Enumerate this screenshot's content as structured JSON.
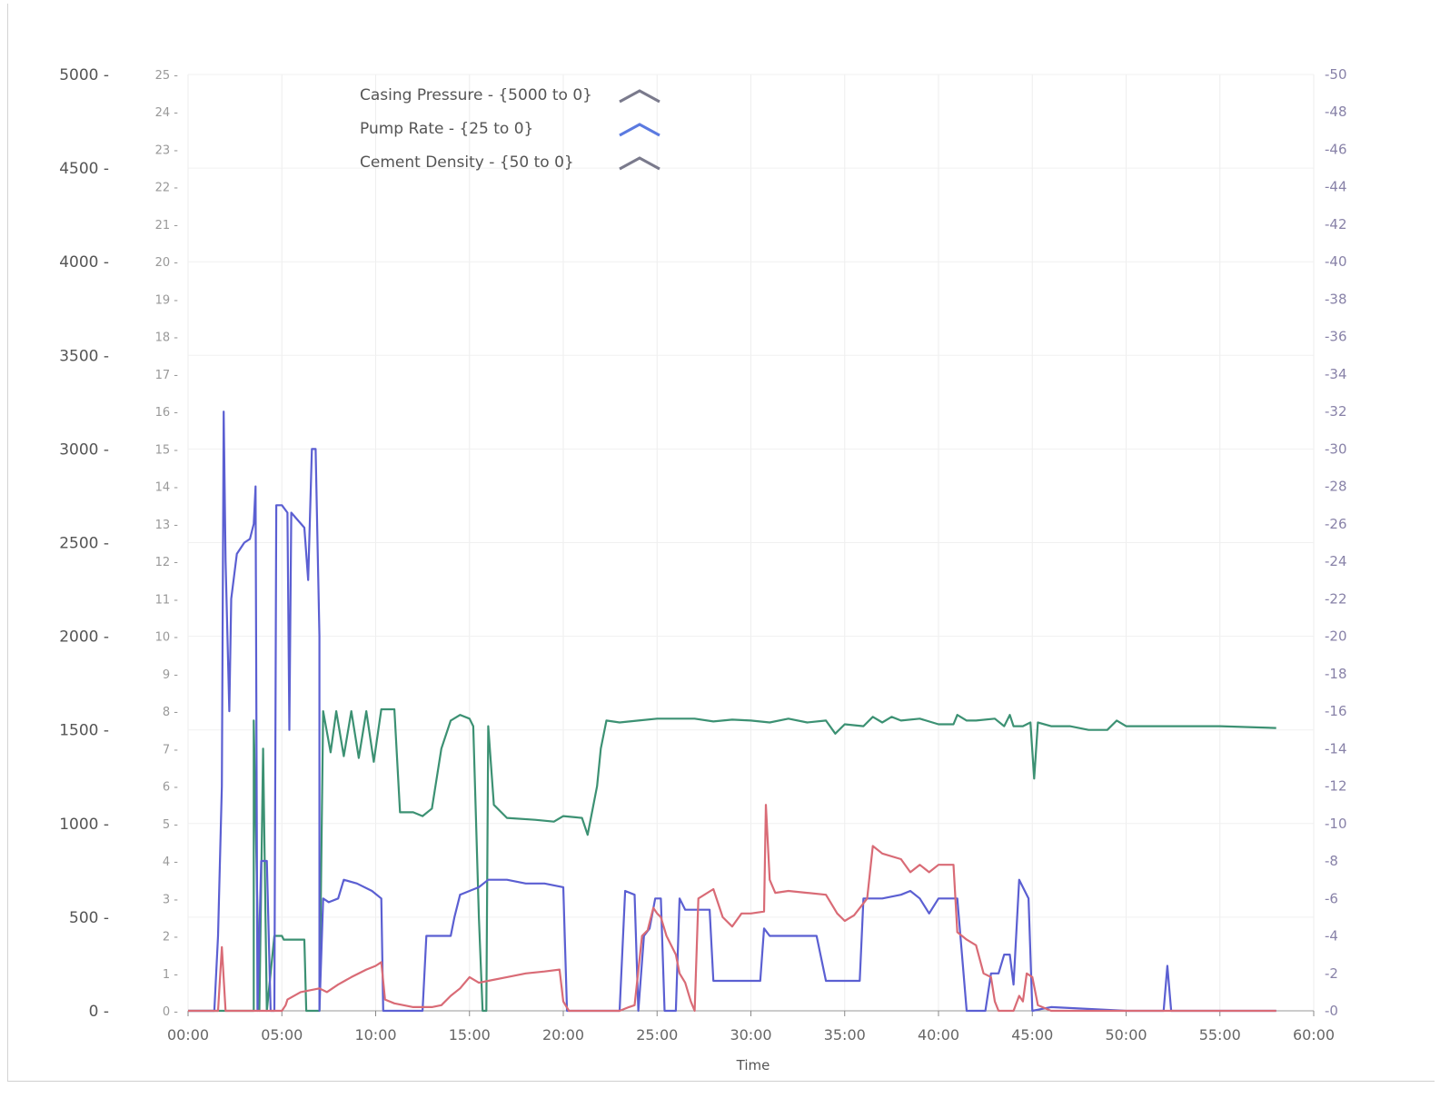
{
  "chart_data": {
    "type": "line",
    "xlabel": "Time",
    "x_ticks": [
      "00:00",
      "05:00",
      "10:00",
      "15:00",
      "20:00",
      "25:00",
      "30:00",
      "35:00",
      "40:00",
      "45:00",
      "50:00",
      "55:00",
      "60:00"
    ],
    "xlim": [
      0,
      60
    ],
    "y_left": {
      "ticks": [
        "0",
        "500",
        "1000",
        "1500",
        "2000",
        "2500",
        "3000",
        "3500",
        "4000",
        "4500",
        "5000"
      ],
      "ylim": [
        0,
        5000
      ]
    },
    "y_mid": {
      "ticks": [
        "0",
        "1",
        "2",
        "3",
        "4",
        "5",
        "6",
        "7",
        "8",
        "9",
        "10",
        "11",
        "12",
        "13",
        "14",
        "15",
        "16",
        "17",
        "18",
        "19",
        "20",
        "21",
        "22",
        "23",
        "24",
        "25"
      ],
      "ylim": [
        0,
        25
      ]
    },
    "y_right": {
      "ticks": [
        "0",
        "2",
        "4",
        "6",
        "8",
        "10",
        "12",
        "14",
        "16",
        "18",
        "20",
        "22",
        "24",
        "26",
        "28",
        "30",
        "32",
        "34",
        "36",
        "38",
        "40",
        "42",
        "44",
        "46",
        "48",
        "50"
      ],
      "ylim": [
        0,
        50
      ]
    },
    "grid": true,
    "legend_position": "top-left",
    "series": [
      {
        "name": "Casing Pressure - {5000 to 0}",
        "color": "#3c9173",
        "axis": "left",
        "points": [
          [
            0,
            0
          ],
          [
            3.5,
            0
          ],
          [
            3.5,
            1550
          ],
          [
            3.8,
            0
          ],
          [
            4.0,
            1400
          ],
          [
            4.2,
            0
          ],
          [
            4.6,
            400
          ],
          [
            5.0,
            400
          ],
          [
            5.1,
            380
          ],
          [
            6.2,
            380
          ],
          [
            6.3,
            0
          ],
          [
            7.0,
            0
          ],
          [
            7.2,
            1600
          ],
          [
            7.6,
            1380
          ],
          [
            7.9,
            1600
          ],
          [
            8.3,
            1360
          ],
          [
            8.7,
            1600
          ],
          [
            9.1,
            1350
          ],
          [
            9.5,
            1600
          ],
          [
            9.9,
            1330
          ],
          [
            10.3,
            1610
          ],
          [
            11.0,
            1610
          ],
          [
            11.3,
            1060
          ],
          [
            12.0,
            1060
          ],
          [
            12.5,
            1040
          ],
          [
            13.0,
            1080
          ],
          [
            13.5,
            1400
          ],
          [
            14.0,
            1550
          ],
          [
            14.5,
            1580
          ],
          [
            15.0,
            1560
          ],
          [
            15.2,
            1520
          ],
          [
            15.5,
            500
          ],
          [
            15.7,
            0
          ],
          [
            15.9,
            0
          ],
          [
            16.0,
            1520
          ],
          [
            16.3,
            1100
          ],
          [
            17.0,
            1030
          ],
          [
            18.5,
            1020
          ],
          [
            19.5,
            1010
          ],
          [
            20.0,
            1040
          ],
          [
            21.0,
            1030
          ],
          [
            21.3,
            940
          ],
          [
            21.8,
            1200
          ],
          [
            22.0,
            1400
          ],
          [
            22.3,
            1550
          ],
          [
            23.0,
            1540
          ],
          [
            24.0,
            1550
          ],
          [
            25.0,
            1560
          ],
          [
            26.0,
            1560
          ],
          [
            27.0,
            1560
          ],
          [
            28.0,
            1545
          ],
          [
            29.0,
            1555
          ],
          [
            30.0,
            1550
          ],
          [
            31.0,
            1540
          ],
          [
            32.0,
            1560
          ],
          [
            33.0,
            1540
          ],
          [
            34.0,
            1550
          ],
          [
            34.5,
            1480
          ],
          [
            35.0,
            1530
          ],
          [
            36.0,
            1520
          ],
          [
            36.5,
            1570
          ],
          [
            37.0,
            1540
          ],
          [
            37.5,
            1570
          ],
          [
            38.0,
            1550
          ],
          [
            39.0,
            1560
          ],
          [
            40.0,
            1530
          ],
          [
            40.8,
            1530
          ],
          [
            41.0,
            1580
          ],
          [
            41.5,
            1550
          ],
          [
            42.0,
            1550
          ],
          [
            43.0,
            1560
          ],
          [
            43.5,
            1520
          ],
          [
            43.8,
            1580
          ],
          [
            44.0,
            1520
          ],
          [
            44.5,
            1520
          ],
          [
            44.9,
            1540
          ],
          [
            45.1,
            1240
          ],
          [
            45.3,
            1540
          ],
          [
            46.0,
            1520
          ],
          [
            47.0,
            1520
          ],
          [
            48.0,
            1500
          ],
          [
            49.0,
            1500
          ],
          [
            49.5,
            1550
          ],
          [
            50.0,
            1520
          ],
          [
            52.0,
            1520
          ],
          [
            55.0,
            1520
          ],
          [
            58.0,
            1510
          ]
        ]
      },
      {
        "name": "Pump Rate - {25 to 0}",
        "color": "#5b5fd2",
        "axis": "mid",
        "points": [
          [
            0,
            0
          ],
          [
            1.4,
            0
          ],
          [
            1.6,
            2
          ],
          [
            1.8,
            6
          ],
          [
            1.9,
            16
          ],
          [
            2.0,
            12
          ],
          [
            2.2,
            8
          ],
          [
            2.3,
            11
          ],
          [
            2.6,
            12.2
          ],
          [
            3.0,
            12.5
          ],
          [
            3.3,
            12.6
          ],
          [
            3.5,
            13
          ],
          [
            3.6,
            14
          ],
          [
            3.7,
            0
          ],
          [
            3.9,
            4
          ],
          [
            4.2,
            4
          ],
          [
            4.4,
            0
          ],
          [
            4.6,
            0
          ],
          [
            4.7,
            13.5
          ],
          [
            5.0,
            13.5
          ],
          [
            5.3,
            13.3
          ],
          [
            5.4,
            7.5
          ],
          [
            5.5,
            13.3
          ],
          [
            6.2,
            12.9
          ],
          [
            6.4,
            11.5
          ],
          [
            6.6,
            15
          ],
          [
            6.8,
            15
          ],
          [
            7.0,
            10
          ],
          [
            7.0,
            0
          ],
          [
            7.2,
            3
          ],
          [
            7.5,
            2.9
          ],
          [
            8.0,
            3
          ],
          [
            8.3,
            3.5
          ],
          [
            9.0,
            3.4
          ],
          [
            9.8,
            3.2
          ],
          [
            10.3,
            3
          ],
          [
            10.4,
            0
          ],
          [
            12.5,
            0
          ],
          [
            12.7,
            2
          ],
          [
            13.0,
            2
          ],
          [
            14.0,
            2
          ],
          [
            14.2,
            2.5
          ],
          [
            14.5,
            3.1
          ],
          [
            15.0,
            3.2
          ],
          [
            15.5,
            3.3
          ],
          [
            16.0,
            3.5
          ],
          [
            17.0,
            3.5
          ],
          [
            18.0,
            3.4
          ],
          [
            19.0,
            3.4
          ],
          [
            20.0,
            3.3
          ],
          [
            20.2,
            0
          ],
          [
            21.5,
            0
          ],
          [
            23.0,
            0
          ],
          [
            23.3,
            3.2
          ],
          [
            23.8,
            3.1
          ],
          [
            24.0,
            0
          ],
          [
            24.3,
            2
          ],
          [
            24.6,
            2.2
          ],
          [
            24.9,
            3
          ],
          [
            25.2,
            3
          ],
          [
            25.4,
            0
          ],
          [
            26.0,
            0
          ],
          [
            26.2,
            3
          ],
          [
            26.5,
            2.7
          ],
          [
            27.8,
            2.7
          ],
          [
            28.0,
            0.8
          ],
          [
            29.0,
            0.8
          ],
          [
            30.0,
            0.8
          ],
          [
            30.5,
            0.8
          ],
          [
            30.7,
            2.2
          ],
          [
            31.0,
            2
          ],
          [
            33.0,
            2
          ],
          [
            33.5,
            2
          ],
          [
            34.0,
            0.8
          ],
          [
            35.0,
            0.8
          ],
          [
            35.8,
            0.8
          ],
          [
            36.0,
            3
          ],
          [
            37.0,
            3
          ],
          [
            38.0,
            3.1
          ],
          [
            38.5,
            3.2
          ],
          [
            39.0,
            3
          ],
          [
            39.5,
            2.6
          ],
          [
            40.0,
            3
          ],
          [
            41.0,
            3
          ],
          [
            41.5,
            0
          ],
          [
            42.5,
            0
          ],
          [
            42.8,
            1
          ],
          [
            43.2,
            1
          ],
          [
            43.5,
            1.5
          ],
          [
            43.8,
            1.5
          ],
          [
            44.0,
            0.7
          ],
          [
            44.3,
            3.5
          ],
          [
            44.8,
            3
          ],
          [
            45.0,
            0
          ],
          [
            46.0,
            0.1
          ],
          [
            50.0,
            0
          ],
          [
            52.0,
            0
          ],
          [
            52.2,
            1.2
          ],
          [
            52.4,
            0
          ],
          [
            55.0,
            0
          ],
          [
            58.0,
            0
          ]
        ]
      },
      {
        "name": "Cement Density - {50 to 0}",
        "color": "#d96b76",
        "axis": "right",
        "points": [
          [
            0,
            0
          ],
          [
            1.6,
            0
          ],
          [
            1.8,
            3.4
          ],
          [
            2.0,
            0
          ],
          [
            3.5,
            0
          ],
          [
            5.0,
            0
          ],
          [
            5.2,
            0.3
          ],
          [
            5.3,
            0.6
          ],
          [
            6.0,
            1
          ],
          [
            7.0,
            1.2
          ],
          [
            7.4,
            1
          ],
          [
            8.0,
            1.4
          ],
          [
            8.7,
            1.8
          ],
          [
            9.5,
            2.2
          ],
          [
            10.0,
            2.4
          ],
          [
            10.3,
            2.6
          ],
          [
            10.5,
            0.6
          ],
          [
            11.0,
            0.4
          ],
          [
            12.0,
            0.2
          ],
          [
            13.0,
            0.2
          ],
          [
            13.5,
            0.3
          ],
          [
            14.0,
            0.8
          ],
          [
            14.5,
            1.2
          ],
          [
            15.0,
            1.8
          ],
          [
            15.5,
            1.5
          ],
          [
            16.0,
            1.6
          ],
          [
            17.0,
            1.8
          ],
          [
            18.0,
            2
          ],
          [
            19.0,
            2.1
          ],
          [
            19.8,
            2.2
          ],
          [
            20.0,
            0.5
          ],
          [
            20.3,
            0
          ],
          [
            21.0,
            0
          ],
          [
            22.0,
            0
          ],
          [
            23.0,
            0
          ],
          [
            23.5,
            0.2
          ],
          [
            23.8,
            0.3
          ],
          [
            24.2,
            4
          ],
          [
            24.5,
            4.3
          ],
          [
            24.8,
            5.5
          ],
          [
            25.0,
            5.2
          ],
          [
            25.2,
            5
          ],
          [
            25.5,
            4
          ],
          [
            26.0,
            3
          ],
          [
            26.2,
            2
          ],
          [
            26.5,
            1.5
          ],
          [
            26.8,
            0.5
          ],
          [
            27.0,
            0
          ],
          [
            27.2,
            6
          ],
          [
            28.0,
            6.5
          ],
          [
            28.5,
            5
          ],
          [
            29.0,
            4.5
          ],
          [
            29.5,
            5.2
          ],
          [
            30.0,
            5.2
          ],
          [
            30.7,
            5.3
          ],
          [
            30.8,
            11
          ],
          [
            31.0,
            7
          ],
          [
            31.3,
            6.3
          ],
          [
            32.0,
            6.4
          ],
          [
            33.0,
            6.3
          ],
          [
            34.0,
            6.2
          ],
          [
            34.6,
            5.2
          ],
          [
            35.0,
            4.8
          ],
          [
            35.5,
            5.1
          ],
          [
            36.2,
            6
          ],
          [
            36.5,
            8.8
          ],
          [
            37.0,
            8.4
          ],
          [
            38.0,
            8.1
          ],
          [
            38.5,
            7.4
          ],
          [
            39.0,
            7.8
          ],
          [
            39.5,
            7.4
          ],
          [
            40.0,
            7.8
          ],
          [
            40.8,
            7.8
          ],
          [
            41.0,
            4.2
          ],
          [
            41.5,
            3.8
          ],
          [
            42.0,
            3.5
          ],
          [
            42.4,
            2
          ],
          [
            42.8,
            1.8
          ],
          [
            43.0,
            0.5
          ],
          [
            43.2,
            0
          ],
          [
            44.0,
            0
          ],
          [
            44.3,
            0.8
          ],
          [
            44.5,
            0.5
          ],
          [
            44.7,
            2
          ],
          [
            45.0,
            1.8
          ],
          [
            45.3,
            0.3
          ],
          [
            46.0,
            0
          ],
          [
            50.0,
            0
          ],
          [
            58.0,
            0
          ]
        ]
      }
    ]
  }
}
